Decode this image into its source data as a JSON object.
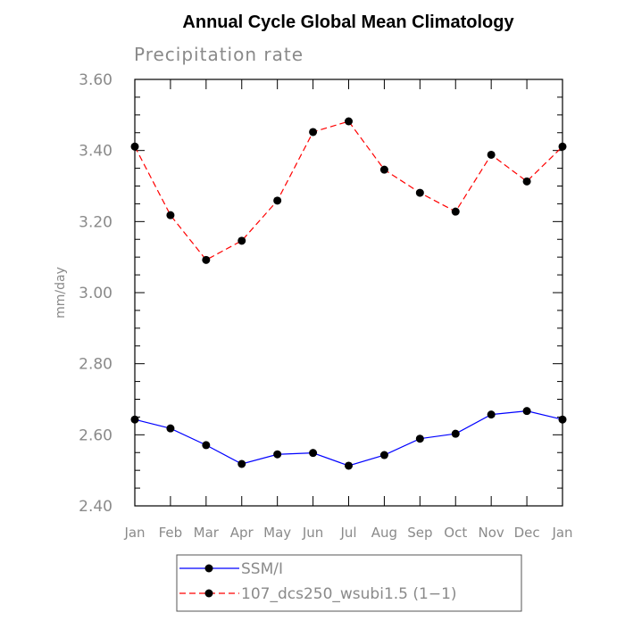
{
  "chart_data": {
    "type": "line",
    "title": "Annual Cycle Global Mean Climatology",
    "subtitle": "Precipitation rate",
    "xlabel": "",
    "ylabel": "mm/day",
    "categories": [
      "Jan",
      "Feb",
      "Mar",
      "Apr",
      "May",
      "Jun",
      "Jul",
      "Aug",
      "Sep",
      "Oct",
      "Nov",
      "Dec",
      "Jan"
    ],
    "ylim": [
      2.4,
      3.6
    ],
    "yticks": [
      2.4,
      2.6,
      2.8,
      3.0,
      3.2,
      3.4,
      3.6
    ],
    "ytick_labels": [
      "2.40",
      "2.60",
      "2.80",
      "3.00",
      "3.20",
      "3.40",
      "3.60"
    ],
    "grid": false,
    "legend_position": "bottom",
    "series": [
      {
        "name": "SSM/I",
        "color": "#0000ff",
        "line_style": "solid",
        "marker": "filled-circle",
        "values": [
          2.643,
          2.618,
          2.571,
          2.518,
          2.545,
          2.549,
          2.513,
          2.543,
          2.589,
          2.603,
          2.657,
          2.667,
          2.643
        ]
      },
      {
        "name": "107_dcs250_wsubi1.5 (1−1)",
        "color": "#ff0000",
        "line_style": "dashed",
        "marker": "filled-circle",
        "values": [
          3.411,
          3.218,
          3.092,
          3.146,
          3.259,
          3.452,
          3.482,
          3.346,
          3.281,
          3.228,
          3.388,
          3.313,
          3.411
        ]
      }
    ]
  }
}
